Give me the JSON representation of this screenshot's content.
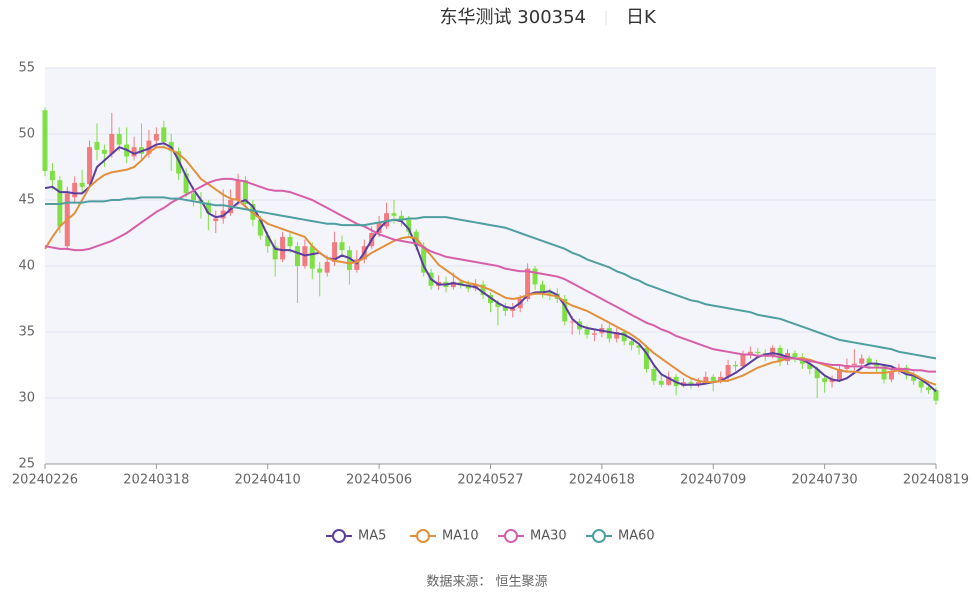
{
  "chart_data": {
    "type": "candlestick",
    "title": "东华测试 300354",
    "period": "日K",
    "source": "数据来源： 恒生聚源",
    "up_color": "#f27b80",
    "down_color": "#7fe045",
    "grid": true,
    "ylim": [
      25,
      55
    ],
    "yticks": [
      25,
      30,
      35,
      40,
      45,
      50,
      55
    ],
    "categories": [
      "20240226",
      null,
      null,
      null,
      null,
      null,
      null,
      null,
      null,
      null,
      null,
      null,
      null,
      null,
      null,
      "20240318",
      null,
      null,
      null,
      null,
      null,
      null,
      null,
      null,
      null,
      null,
      null,
      null,
      null,
      null,
      "20240410",
      null,
      null,
      null,
      null,
      null,
      null,
      null,
      null,
      null,
      null,
      null,
      null,
      null,
      null,
      "20240506",
      null,
      null,
      null,
      null,
      null,
      null,
      null,
      null,
      null,
      null,
      null,
      null,
      null,
      null,
      "20240527",
      null,
      null,
      null,
      null,
      null,
      null,
      null,
      null,
      null,
      null,
      null,
      null,
      null,
      null,
      "20240618",
      null,
      null,
      null,
      null,
      null,
      null,
      null,
      null,
      null,
      null,
      null,
      null,
      null,
      null,
      "20240709",
      null,
      null,
      null,
      null,
      null,
      null,
      null,
      null,
      null,
      null,
      null,
      null,
      null,
      null,
      "20240730",
      null,
      null,
      null,
      null,
      null,
      null,
      null,
      null,
      null,
      null,
      null,
      null,
      null,
      null,
      "20240819"
    ],
    "candles": [
      [
        51.8,
        47.2,
        46.8,
        52
      ],
      [
        47.2,
        46.5,
        45.8,
        47.8
      ],
      [
        46.5,
        43,
        42.5,
        46.8
      ],
      [
        41.5,
        45.5,
        41.2,
        46
      ],
      [
        45.2,
        46.3,
        44.8,
        46.8
      ],
      [
        46.3,
        46,
        45.5,
        47.3
      ],
      [
        46.2,
        49,
        46,
        49.5
      ],
      [
        49.4,
        48.8,
        48,
        50.8
      ],
      [
        48.8,
        48.5,
        47.5,
        49.2
      ],
      [
        48.5,
        50,
        48.2,
        51.6
      ],
      [
        50,
        49.2,
        48.7,
        50.5
      ],
      [
        49.2,
        48.3,
        47.8,
        50.5
      ],
      [
        48.3,
        49,
        48,
        49.8
      ],
      [
        49,
        48.5,
        48,
        50.8
      ],
      [
        48.5,
        49.5,
        48.2,
        50.3
      ],
      [
        49.5,
        50,
        49,
        50.5
      ],
      [
        50.5,
        49.4,
        49,
        51
      ],
      [
        49.4,
        48.7,
        47.2,
        50
      ],
      [
        48.7,
        47,
        46.5,
        49
      ],
      [
        47,
        45.5,
        45.2,
        47.4
      ],
      [
        45.5,
        45,
        44.5,
        46
      ],
      [
        45,
        44.8,
        43.6,
        45.6
      ],
      [
        44.8,
        44,
        42.7,
        45
      ],
      [
        43.4,
        43.6,
        42.5,
        44.2
      ],
      [
        43.6,
        44.2,
        43.2,
        45.8
      ],
      [
        44,
        45,
        43.8,
        45.8
      ],
      [
        45,
        46.5,
        44.6,
        47
      ],
      [
        46.5,
        44.7,
        44.4,
        46.8
      ],
      [
        44.7,
        43.5,
        43,
        45
      ],
      [
        43.5,
        42.3,
        42,
        43.8
      ],
      [
        42.3,
        41.5,
        41,
        42.6
      ],
      [
        41.5,
        40.5,
        39.2,
        42
      ],
      [
        40.5,
        42.2,
        40.3,
        42.6
      ],
      [
        42.2,
        41.5,
        41,
        42.5
      ],
      [
        41.5,
        40,
        37.2,
        41.8
      ],
      [
        40,
        41.5,
        39.8,
        42
      ],
      [
        41.5,
        39.8,
        39,
        41.8
      ],
      [
        39.8,
        39.5,
        37.7,
        40.3
      ],
      [
        39.5,
        40.3,
        39.2,
        40.8
      ],
      [
        40.3,
        41.8,
        40,
        42.6
      ],
      [
        41.8,
        41.2,
        40.8,
        42.3
      ],
      [
        41.2,
        39.7,
        38.6,
        41.5
      ],
      [
        39.7,
        40.5,
        39.5,
        41.2
      ],
      [
        40.5,
        41.5,
        40.2,
        42
      ],
      [
        41.5,
        42.5,
        41.3,
        43
      ],
      [
        42.5,
        43.3,
        42.2,
        43.8
      ],
      [
        43,
        44,
        42.8,
        44.8
      ],
      [
        44,
        43.8,
        43.2,
        45
      ],
      [
        43.8,
        43.5,
        43,
        44.2
      ],
      [
        43.5,
        42.6,
        42.2,
        43.8
      ],
      [
        42.6,
        41.5,
        41.2,
        42.8
      ],
      [
        41.5,
        39.5,
        39.2,
        41.8
      ],
      [
        39.5,
        38.5,
        38.2,
        39.8
      ],
      [
        38.5,
        38.8,
        38.2,
        39.3
      ],
      [
        38.8,
        38.4,
        38,
        39.2
      ],
      [
        38.4,
        38.8,
        38.2,
        39.5
      ],
      [
        38.8,
        38.6,
        38.3,
        39
      ],
      [
        38.6,
        38.3,
        38,
        38.9
      ],
      [
        38.3,
        38.6,
        38.1,
        39
      ],
      [
        38.6,
        37.8,
        37.5,
        38.9
      ],
      [
        37.8,
        37.2,
        36.5,
        38
      ],
      [
        37.2,
        36.9,
        35.5,
        37.4
      ],
      [
        36.9,
        36.6,
        36.2,
        37.2
      ],
      [
        36.6,
        36.8,
        36.1,
        37.2
      ],
      [
        36.8,
        37.5,
        36.5,
        37.8
      ],
      [
        37.5,
        39.8,
        37.3,
        40.2
      ],
      [
        39.8,
        38.6,
        38.2,
        40
      ],
      [
        38.6,
        38,
        37.6,
        38.9
      ],
      [
        38,
        37.9,
        37.4,
        38.3
      ],
      [
        37.9,
        37.5,
        37.2,
        38.3
      ],
      [
        37.5,
        35.8,
        35.5,
        37.8
      ],
      [
        35.8,
        35.8,
        34.8,
        36.2
      ],
      [
        35.8,
        35.2,
        34.8,
        36
      ],
      [
        35.2,
        34.8,
        34.5,
        35.5
      ],
      [
        34.8,
        34.9,
        34.3,
        35.2
      ],
      [
        34.9,
        35.3,
        34.6,
        35.6
      ],
      [
        35.3,
        34.5,
        34.2,
        35.6
      ],
      [
        34.5,
        35,
        34.2,
        35.3
      ],
      [
        35,
        34.3,
        34,
        35.2
      ],
      [
        34.3,
        34,
        33.6,
        34.6
      ],
      [
        34,
        33.8,
        33.3,
        34.2
      ],
      [
        33.8,
        32.2,
        31.9,
        34
      ],
      [
        32.2,
        31.3,
        31,
        32.5
      ],
      [
        31.3,
        31,
        30.8,
        31.7
      ],
      [
        31,
        31.6,
        30.9,
        32
      ],
      [
        31.6,
        30.9,
        30.2,
        31.8
      ],
      [
        30.9,
        31.2,
        30.8,
        31.5
      ],
      [
        31.2,
        31,
        30.7,
        31.4
      ],
      [
        31,
        31.2,
        30.8,
        31.5
      ],
      [
        31.2,
        31.6,
        31,
        32
      ],
      [
        31.6,
        31.3,
        30.5,
        31.8
      ],
      [
        31.3,
        31.6,
        31.1,
        32
      ],
      [
        31.6,
        32.5,
        31.4,
        32.9
      ],
      [
        32.5,
        32.4,
        32,
        32.8
      ],
      [
        32.4,
        33.3,
        32.2,
        33.6
      ],
      [
        33.3,
        33.5,
        33,
        33.9
      ],
      [
        33.5,
        33.4,
        33,
        33.8
      ],
      [
        33.4,
        33.2,
        32.8,
        33.7
      ],
      [
        33.2,
        33.8,
        33,
        34
      ],
      [
        33.8,
        32.8,
        32.4,
        34
      ],
      [
        32.8,
        33.4,
        32.5,
        33.7
      ],
      [
        33.4,
        33.1,
        32.7,
        33.6
      ],
      [
        33.1,
        32.6,
        32.2,
        33.4
      ],
      [
        32.6,
        32.2,
        31.8,
        32.9
      ],
      [
        32.2,
        31.5,
        30,
        32.4
      ],
      [
        31.5,
        31.2,
        30.4,
        31.8
      ],
      [
        31.2,
        31.4,
        30.8,
        31.7
      ],
      [
        31.4,
        32.2,
        31.2,
        32.5
      ],
      [
        32.2,
        32.5,
        31.9,
        33
      ],
      [
        32.5,
        32.6,
        32.1,
        33.7
      ],
      [
        32.6,
        33,
        32.3,
        33.3
      ],
      [
        33,
        32.6,
        32.2,
        33.2
      ],
      [
        32.6,
        32.4,
        31.9,
        32.9
      ],
      [
        32.4,
        31.4,
        31.1,
        32.6
      ],
      [
        31.4,
        32,
        31.2,
        32.3
      ],
      [
        32,
        32.3,
        31.8,
        32.6
      ],
      [
        32.3,
        31.8,
        31.4,
        32.5
      ],
      [
        31.8,
        31.3,
        31,
        32
      ],
      [
        31.3,
        30.8,
        30.4,
        31.5
      ],
      [
        30.8,
        30.6,
        30.3,
        31
      ],
      [
        30.6,
        29.8,
        29.5,
        30.8
      ]
    ],
    "series": [
      {
        "name": "MA5",
        "color": "#5a3d9e",
        "values": [
          45.9,
          46,
          45.6,
          45.6,
          45.5,
          45.5,
          46,
          47.5,
          48,
          48.5,
          49,
          48.8,
          48.5,
          48.7,
          48.9,
          49.2,
          49.3,
          49,
          48,
          46.8,
          45.8,
          45,
          44,
          43.7,
          43.8,
          44.3,
          44.8,
          45,
          44.5,
          43.5,
          42.3,
          41.3,
          41.2,
          41.2,
          41,
          40.8,
          40.9,
          41,
          40.6,
          40.5,
          40.8,
          40.6,
          40.2,
          41,
          42,
          42.8,
          43.4,
          43.5,
          43.4,
          42.8,
          41.5,
          40,
          39,
          38.6,
          38.6,
          38.7,
          38.6,
          38.5,
          38.4,
          38,
          37.6,
          37.2,
          36.9,
          36.8,
          37.2,
          37.8,
          38,
          38,
          38.1,
          37.8,
          37,
          36,
          35.5,
          35.3,
          35.2,
          35.1,
          35,
          34.9,
          34.8,
          34.5,
          34.1,
          33.4,
          32.5,
          31.8,
          31.5,
          31.2,
          31,
          31,
          31,
          31.1,
          31.2,
          31.3,
          31.6,
          31.9,
          32.3,
          32.7,
          33.1,
          33.3,
          33.4,
          33.3,
          33.1,
          33,
          32.9,
          32.6,
          32.2,
          31.7,
          31.4,
          31.3,
          31.5,
          31.9,
          32.3,
          32.6,
          32.6,
          32.5,
          32.4,
          32.1,
          31.8,
          31.7,
          31.4,
          31,
          30.5
        ]
      },
      {
        "name": "MA10",
        "color": "#e3903c",
        "values": [
          41.3,
          42.2,
          43,
          43.5,
          44,
          45,
          46,
          46.5,
          46.9,
          47.1,
          47.2,
          47.3,
          47.5,
          48,
          48.6,
          49,
          49,
          48.8,
          48.5,
          48,
          47.3,
          46.6,
          46.2,
          45.8,
          45.4,
          45.1,
          45,
          44.5,
          44,
          43.6,
          43.2,
          43,
          42.8,
          42.6,
          42.4,
          42.2,
          41.5,
          41,
          40.6,
          40.4,
          40.3,
          40.2,
          40.3,
          40.6,
          41,
          41.3,
          41.6,
          41.9,
          42.1,
          42.2,
          42.1,
          41.4,
          40.8,
          40.1,
          39.7,
          39.3,
          38.9,
          38.7,
          38.6,
          38.4,
          38.2,
          37.9,
          37.6,
          37.5,
          37.6,
          37.8,
          37.9,
          37.9,
          37.8,
          37.7,
          37.3,
          37,
          36.8,
          36.6,
          36.3,
          36,
          35.7,
          35.4,
          35.1,
          34.8,
          34.4,
          33.9,
          33.4,
          33,
          32.6,
          32.2,
          31.8,
          31.5,
          31.3,
          31.2,
          31.2,
          31.3,
          31.3,
          31.5,
          31.7,
          32,
          32.3,
          32.5,
          32.7,
          32.8,
          33,
          33,
          33,
          32.9,
          32.7,
          32.5,
          32.3,
          32.1,
          32,
          32,
          31.9,
          31.9,
          31.9,
          31.9,
          32,
          32.1,
          32,
          31.8,
          31.5,
          31.2,
          31
        ]
      },
      {
        "name": "MA30",
        "color": "#d65fa8",
        "values": [
          41.5,
          41.4,
          41.3,
          41.3,
          41.2,
          41.2,
          41.3,
          41.5,
          41.7,
          41.9,
          42.2,
          42.5,
          42.9,
          43.3,
          43.7,
          44.1,
          44.4,
          44.8,
          45.1,
          45.4,
          45.7,
          46,
          46.3,
          46.5,
          46.6,
          46.6,
          46.5,
          46.4,
          46.2,
          46,
          45.8,
          45.7,
          45.7,
          45.6,
          45.4,
          45.2,
          45,
          44.7,
          44.4,
          44.1,
          43.8,
          43.5,
          43.2,
          43,
          42.7,
          42.4,
          42.2,
          42,
          41.9,
          41.8,
          41.7,
          41.4,
          41.1,
          40.9,
          40.7,
          40.6,
          40.5,
          40.4,
          40.3,
          40.2,
          40.1,
          40,
          39.8,
          39.7,
          39.6,
          39.6,
          39.5,
          39.4,
          39.3,
          39.2,
          39,
          38.7,
          38.4,
          38.1,
          37.8,
          37.5,
          37.2,
          36.9,
          36.6,
          36.3,
          36,
          35.7,
          35.5,
          35.2,
          35,
          34.7,
          34.5,
          34.3,
          34.1,
          33.9,
          33.7,
          33.6,
          33.5,
          33.4,
          33.3,
          33.3,
          33.2,
          33.2,
          33.2,
          33.1,
          33,
          33,
          32.9,
          32.8,
          32.7,
          32.6,
          32.5,
          32.5,
          32.4,
          32.4,
          32.4,
          32.3,
          32.3,
          32.3,
          32.2,
          32.2,
          32.2,
          32.1,
          32.1,
          32,
          32
        ]
      },
      {
        "name": "MA60",
        "color": "#4f9ea0",
        "values": [
          44.7,
          44.7,
          44.7,
          44.8,
          44.8,
          44.8,
          44.9,
          44.9,
          44.9,
          45,
          45,
          45.1,
          45.1,
          45.2,
          45.2,
          45.2,
          45.2,
          45.1,
          45.1,
          45,
          44.9,
          44.8,
          44.7,
          44.6,
          44.6,
          44.5,
          44.4,
          44.3,
          44.2,
          44.1,
          44,
          43.9,
          43.8,
          43.7,
          43.6,
          43.5,
          43.4,
          43.3,
          43.2,
          43.2,
          43.1,
          43.1,
          43.1,
          43.1,
          43.2,
          43.3,
          43.4,
          43.5,
          43.5,
          43.6,
          43.6,
          43.7,
          43.7,
          43.7,
          43.7,
          43.6,
          43.5,
          43.4,
          43.3,
          43.2,
          43.1,
          43,
          42.9,
          42.7,
          42.5,
          42.3,
          42.1,
          41.9,
          41.7,
          41.5,
          41.3,
          41,
          40.8,
          40.5,
          40.3,
          40.1,
          39.9,
          39.6,
          39.4,
          39.1,
          38.9,
          38.6,
          38.4,
          38.2,
          38,
          37.8,
          37.6,
          37.4,
          37.3,
          37.1,
          37,
          36.9,
          36.8,
          36.7,
          36.6,
          36.5,
          36.3,
          36.2,
          36.1,
          36,
          35.8,
          35.6,
          35.4,
          35.2,
          35,
          34.8,
          34.6,
          34.4,
          34.3,
          34.2,
          34.1,
          34,
          33.9,
          33.8,
          33.7,
          33.5,
          33.4,
          33.3,
          33.2,
          33.1,
          33
        ]
      }
    ]
  }
}
